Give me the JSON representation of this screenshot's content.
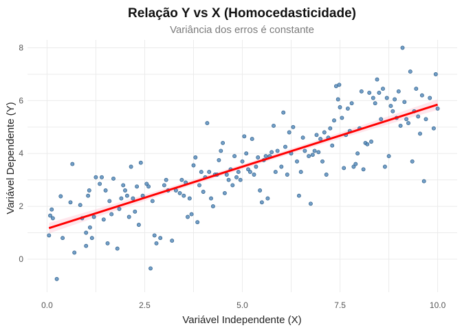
{
  "chart_data": {
    "type": "scatter",
    "title": "Relação Y vs X (Homocedasticidade)",
    "subtitle": "Variância dos erros é constante",
    "xlabel": "Variável Independente (X)",
    "ylabel": "Variável Dependente (Y)",
    "xlim": [
      -0.5,
      10.5
    ],
    "ylim": [
      -1.25,
      8.3
    ],
    "grid": true,
    "x_ticks": [
      0.0,
      2.5,
      5.0,
      7.5,
      10.0
    ],
    "x_tick_labels": [
      "0.0",
      "2.5",
      "5.0",
      "7.5",
      "10.0"
    ],
    "y_ticks": [
      0,
      2,
      4,
      6,
      8
    ],
    "y_tick_labels": [
      "0",
      "2",
      "4",
      "6",
      "8"
    ],
    "point_color": "#4f86b8",
    "line_color": "#ff0000",
    "band_color": "#ffb6c8",
    "fit": {
      "intercept": 1.15,
      "slope": 0.47,
      "band_halfwidth": 0.2
    },
    "points": [
      [
        0.05,
        0.9
      ],
      [
        0.08,
        1.65
      ],
      [
        0.12,
        1.88
      ],
      [
        0.15,
        1.55
      ],
      [
        0.25,
        -0.75
      ],
      [
        0.35,
        2.38
      ],
      [
        0.4,
        0.8
      ],
      [
        0.6,
        2.15
      ],
      [
        0.65,
        3.6
      ],
      [
        0.7,
        0.25
      ],
      [
        0.85,
        2.05
      ],
      [
        0.9,
        1.55
      ],
      [
        1.0,
        0.5
      ],
      [
        1.0,
        1.0
      ],
      [
        1.05,
        2.4
      ],
      [
        1.08,
        2.6
      ],
      [
        1.1,
        1.2
      ],
      [
        1.15,
        0.8
      ],
      [
        1.2,
        1.6
      ],
      [
        1.25,
        3.1
      ],
      [
        1.35,
        2.85
      ],
      [
        1.4,
        3.1
      ],
      [
        1.45,
        1.5
      ],
      [
        1.5,
        2.6
      ],
      [
        1.55,
        0.6
      ],
      [
        1.6,
        2.2
      ],
      [
        1.65,
        1.7
      ],
      [
        1.7,
        3.05
      ],
      [
        1.8,
        0.4
      ],
      [
        1.85,
        1.9
      ],
      [
        1.9,
        2.3
      ],
      [
        1.95,
        2.8
      ],
      [
        2.0,
        2.6
      ],
      [
        2.05,
        2.4
      ],
      [
        2.1,
        1.6
      ],
      [
        2.15,
        3.5
      ],
      [
        2.2,
        2.3
      ],
      [
        2.25,
        1.8
      ],
      [
        2.3,
        2.75
      ],
      [
        2.35,
        1.3
      ],
      [
        2.4,
        3.65
      ],
      [
        2.45,
        2.4
      ],
      [
        2.55,
        2.85
      ],
      [
        2.6,
        2.75
      ],
      [
        2.65,
        -0.35
      ],
      [
        2.7,
        2.2
      ],
      [
        2.75,
        0.9
      ],
      [
        2.8,
        0.6
      ],
      [
        2.9,
        0.8
      ],
      [
        3.0,
        2.8
      ],
      [
        3.05,
        3.0
      ],
      [
        3.1,
        2.6
      ],
      [
        3.2,
        0.7
      ],
      [
        3.3,
        2.6
      ],
      [
        3.4,
        2.5
      ],
      [
        3.45,
        3.0
      ],
      [
        3.5,
        2.4
      ],
      [
        3.55,
        2.9
      ],
      [
        3.6,
        1.6
      ],
      [
        3.65,
        2.3
      ],
      [
        3.7,
        1.7
      ],
      [
        3.75,
        3.55
      ],
      [
        3.8,
        3.85
      ],
      [
        3.85,
        1.4
      ],
      [
        3.9,
        2.8
      ],
      [
        3.95,
        3.3
      ],
      [
        4.0,
        2.55
      ],
      [
        4.05,
        3.1
      ],
      [
        4.1,
        5.15
      ],
      [
        4.15,
        3.3
      ],
      [
        4.2,
        2.3
      ],
      [
        4.25,
        2.0
      ],
      [
        4.3,
        3.2
      ],
      [
        4.35,
        3.2
      ],
      [
        4.4,
        3.75
      ],
      [
        4.45,
        4.1
      ],
      [
        4.5,
        4.4
      ],
      [
        4.55,
        2.5
      ],
      [
        4.6,
        3.2
      ],
      [
        4.65,
        3.0
      ],
      [
        4.7,
        3.4
      ],
      [
        4.75,
        2.8
      ],
      [
        4.8,
        3.9
      ],
      [
        4.85,
        3.1
      ],
      [
        4.9,
        3.3
      ],
      [
        4.95,
        3.0
      ],
      [
        5.0,
        3.7
      ],
      [
        5.05,
        4.65
      ],
      [
        5.1,
        4.0
      ],
      [
        5.15,
        3.4
      ],
      [
        5.2,
        3.3
      ],
      [
        5.25,
        4.55
      ],
      [
        5.3,
        3.2
      ],
      [
        5.35,
        3.5
      ],
      [
        5.4,
        3.85
      ],
      [
        5.45,
        2.6
      ],
      [
        5.5,
        2.15
      ],
      [
        5.55,
        3.75
      ],
      [
        5.6,
        3.9
      ],
      [
        5.65,
        2.3
      ],
      [
        5.7,
        3.9
      ],
      [
        5.75,
        4.05
      ],
      [
        5.8,
        5.05
      ],
      [
        5.85,
        3.3
      ],
      [
        5.9,
        4.1
      ],
      [
        6.0,
        3.5
      ],
      [
        6.05,
        5.55
      ],
      [
        6.1,
        4.25
      ],
      [
        6.15,
        3.2
      ],
      [
        6.2,
        4.8
      ],
      [
        6.25,
        4.0
      ],
      [
        6.3,
        5.0
      ],
      [
        6.4,
        3.7
      ],
      [
        6.45,
        2.4
      ],
      [
        6.5,
        3.3
      ],
      [
        6.55,
        4.6
      ],
      [
        6.6,
        4.1
      ],
      [
        6.7,
        3.9
      ],
      [
        6.75,
        2.1
      ],
      [
        6.8,
        3.95
      ],
      [
        6.85,
        4.1
      ],
      [
        6.9,
        4.7
      ],
      [
        6.95,
        4.05
      ],
      [
        7.0,
        4.55
      ],
      [
        7.05,
        3.7
      ],
      [
        7.1,
        4.8
      ],
      [
        7.15,
        3.2
      ],
      [
        7.2,
        4.6
      ],
      [
        7.25,
        4.95
      ],
      [
        7.3,
        4.3
      ],
      [
        7.35,
        5.25
      ],
      [
        7.4,
        6.55
      ],
      [
        7.45,
        6.05
      ],
      [
        7.48,
        6.6
      ],
      [
        7.5,
        5.75
      ],
      [
        7.55,
        5.35
      ],
      [
        7.6,
        3.45
      ],
      [
        7.65,
        4.7
      ],
      [
        7.7,
        5.7
      ],
      [
        7.75,
        4.85
      ],
      [
        7.8,
        5.9
      ],
      [
        7.85,
        3.5
      ],
      [
        7.9,
        3.6
      ],
      [
        7.95,
        4.0
      ],
      [
        8.0,
        4.95
      ],
      [
        8.05,
        6.35
      ],
      [
        8.1,
        3.4
      ],
      [
        8.15,
        4.4
      ],
      [
        8.2,
        4.35
      ],
      [
        8.25,
        6.3
      ],
      [
        8.3,
        4.45
      ],
      [
        8.35,
        6.1
      ],
      [
        8.4,
        5.9
      ],
      [
        8.45,
        6.8
      ],
      [
        8.5,
        6.3
      ],
      [
        8.55,
        5.3
      ],
      [
        8.6,
        6.45
      ],
      [
        8.65,
        3.5
      ],
      [
        8.7,
        6.1
      ],
      [
        8.75,
        3.9
      ],
      [
        8.8,
        5.8
      ],
      [
        8.85,
        5.6
      ],
      [
        8.9,
        6.05
      ],
      [
        8.95,
        5.35
      ],
      [
        9.0,
        6.35
      ],
      [
        9.05,
        5.05
      ],
      [
        9.1,
        8.0
      ],
      [
        9.15,
        5.95
      ],
      [
        9.2,
        5.3
      ],
      [
        9.25,
        5.15
      ],
      [
        9.3,
        7.1
      ],
      [
        9.35,
        3.7
      ],
      [
        9.4,
        5.6
      ],
      [
        9.45,
        6.45
      ],
      [
        9.5,
        5.4
      ],
      [
        9.55,
        4.75
      ],
      [
        9.6,
        6.2
      ],
      [
        9.65,
        2.95
      ],
      [
        9.7,
        5.3
      ],
      [
        9.8,
        6.1
      ],
      [
        9.9,
        4.95
      ],
      [
        9.95,
        7.0
      ],
      [
        10.0,
        5.7
      ]
    ]
  }
}
